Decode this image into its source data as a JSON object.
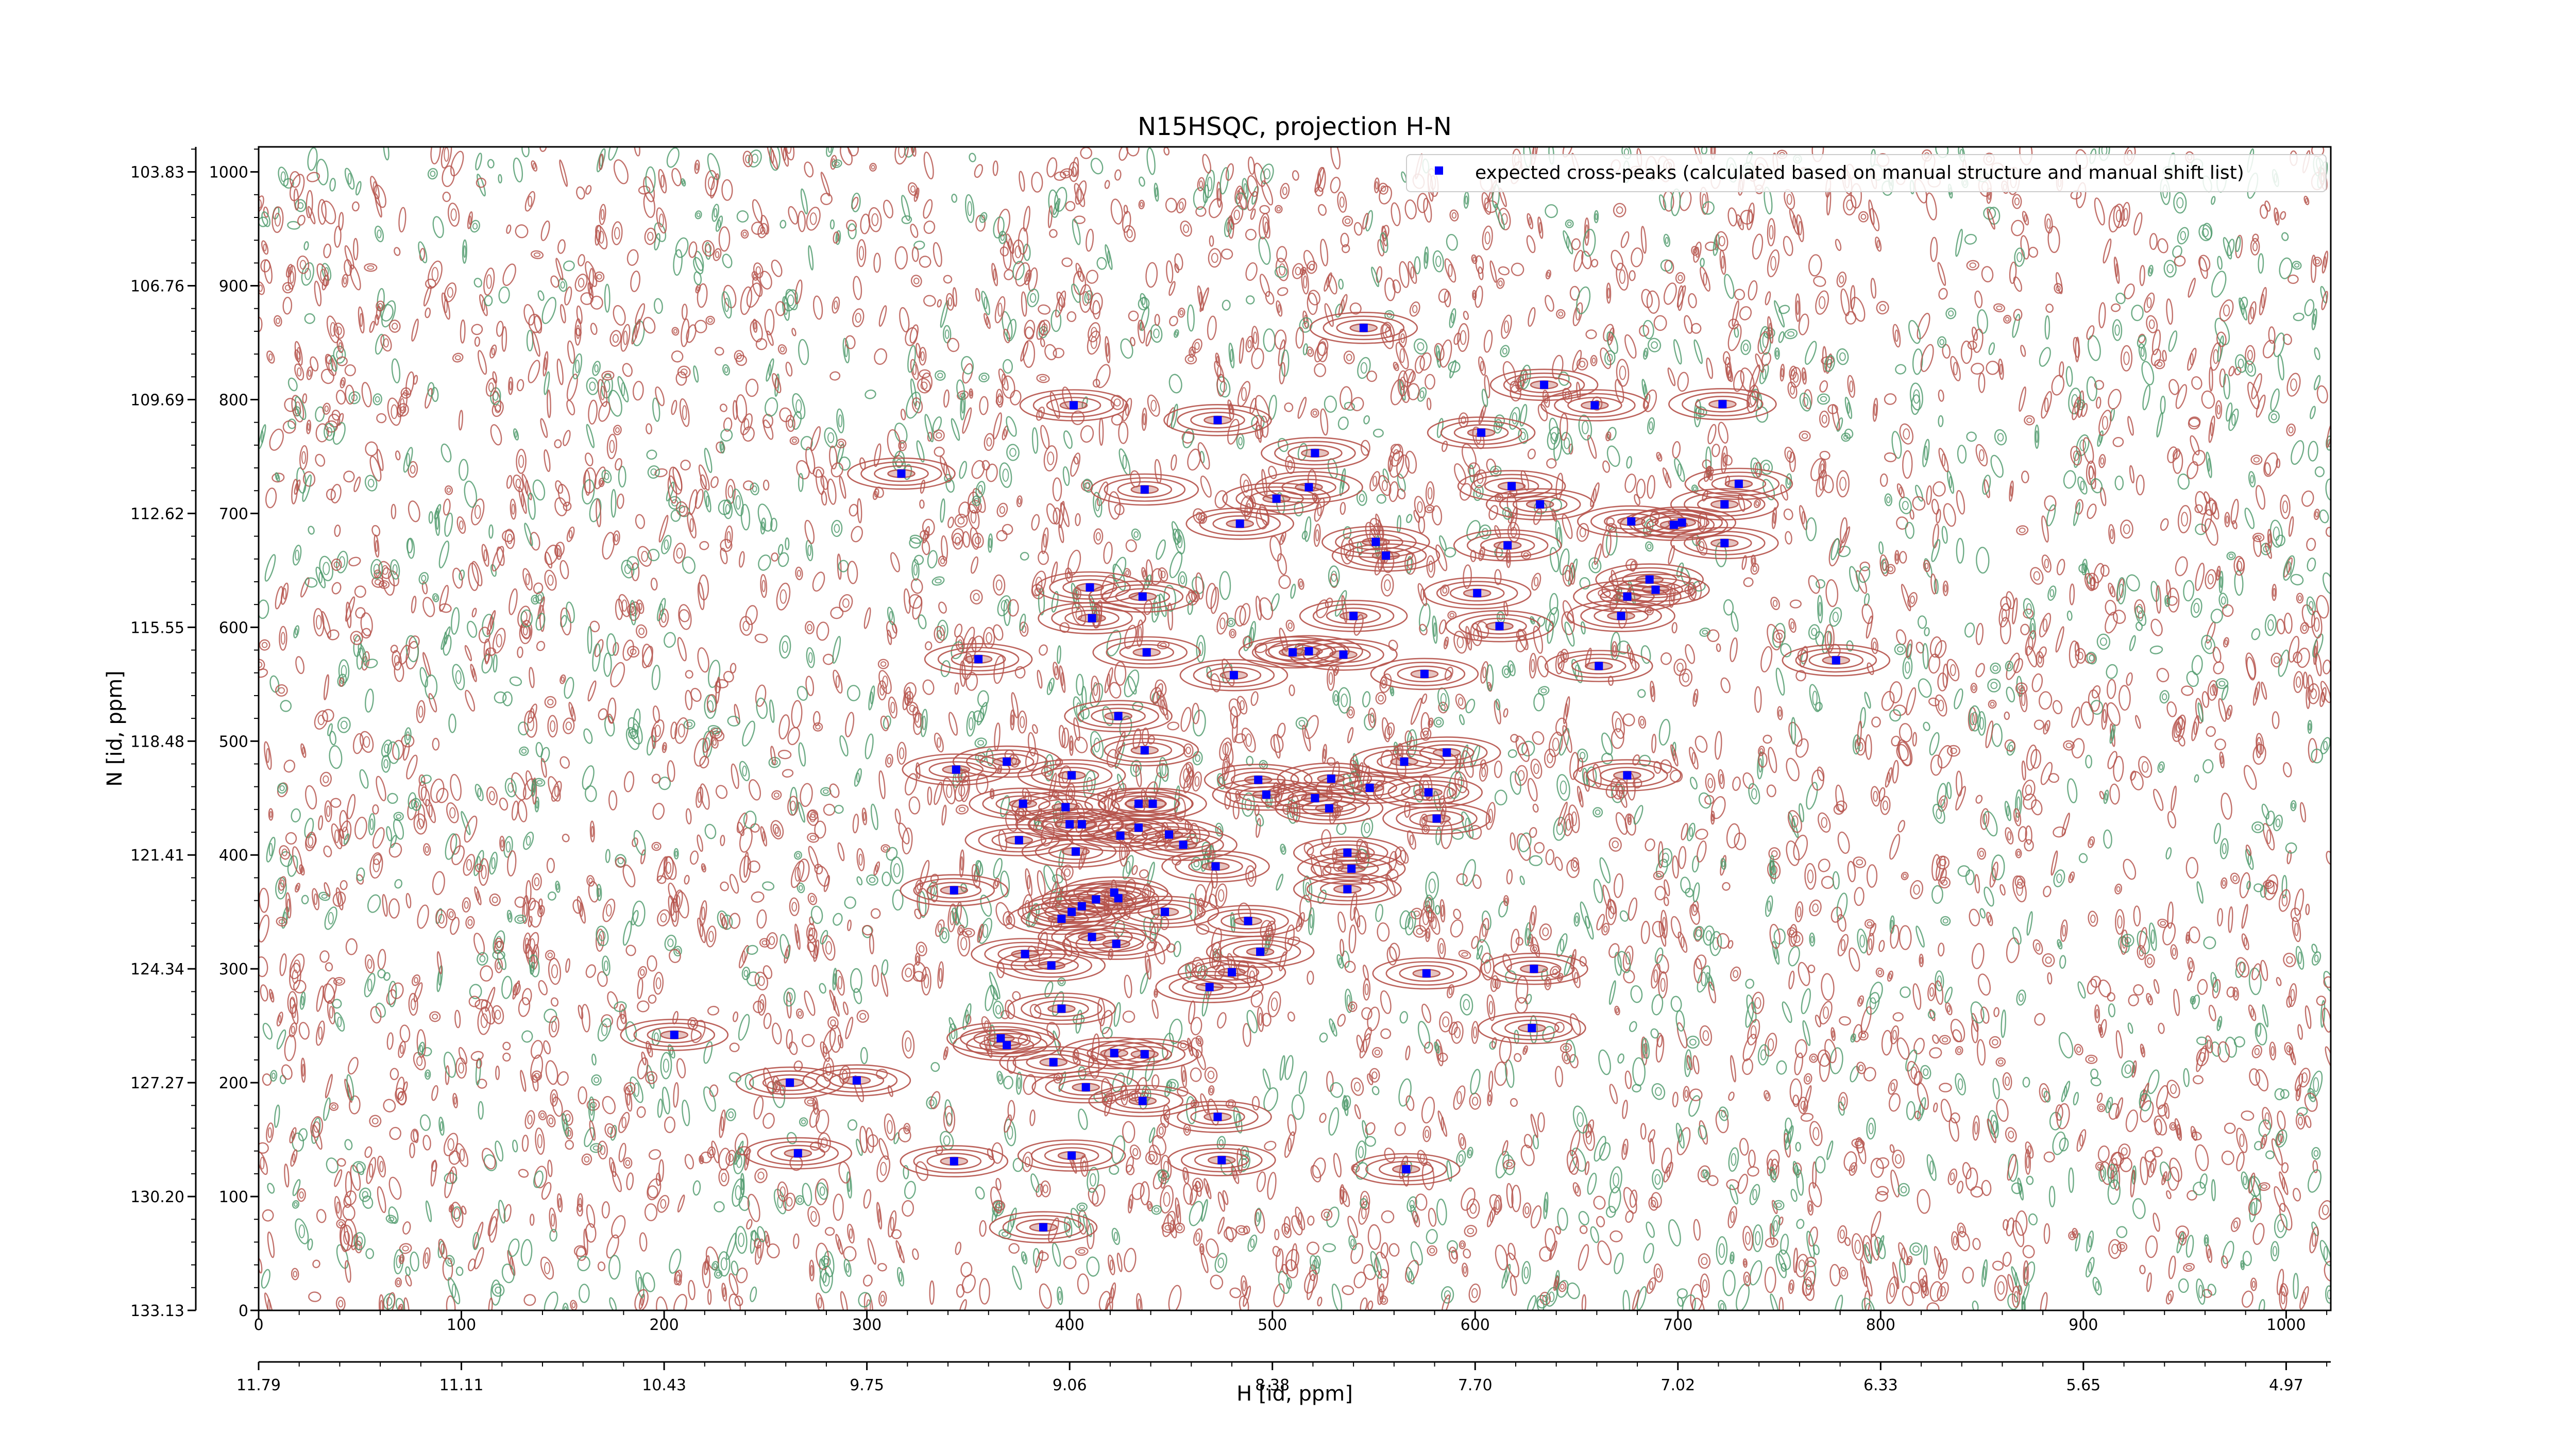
{
  "chart_data": {
    "type": "scatter",
    "title": "N15HSQC, projection H-N",
    "xlabel": "H [id, ppm]",
    "ylabel": "N [id, ppm]",
    "x_index_range": [
      0,
      1022
    ],
    "y_index_range": [
      0,
      1022
    ],
    "x_index_ticks": [
      "0",
      "100",
      "200",
      "300",
      "400",
      "500",
      "600",
      "700",
      "800",
      "900",
      "1000"
    ],
    "y_index_ticks": [
      "0",
      "100",
      "200",
      "300",
      "400",
      "500",
      "600",
      "700",
      "800",
      "900",
      "1000"
    ],
    "h_ppm_ticks": [
      "11.79",
      "11.11",
      "10.43",
      "9.75",
      "9.06",
      "8.38",
      "7.70",
      "7.02",
      "6.33",
      "5.65",
      "4.97"
    ],
    "n_ppm_ticks": [
      "133.13",
      "130.20",
      "127.27",
      "124.34",
      "121.41",
      "118.48",
      "115.55",
      "112.62",
      "109.69",
      "106.76",
      "103.83"
    ],
    "grid": false,
    "legend": {
      "placement": "top-right",
      "entries": [
        {
          "label": "expected cross-peaks (calculated based on manual structure and manual shift list)",
          "color": "#0000ff"
        }
      ]
    },
    "colors": {
      "positive_contours": "#b5524a",
      "negative_contours": "#4e9a6b",
      "peak_marker": "#0000ff"
    },
    "series": [
      {
        "name": "expected cross-peaks (calculated based on manual structure and manual shift list)",
        "points": [
          [
            545,
            863
          ],
          [
            402,
            795
          ],
          [
            473,
            782
          ],
          [
            634,
            813
          ],
          [
            659,
            795
          ],
          [
            722,
            796
          ],
          [
            603,
            771
          ],
          [
            521,
            753
          ],
          [
            317,
            735
          ],
          [
            437,
            721
          ],
          [
            518,
            723
          ],
          [
            502,
            713
          ],
          [
            618,
            724
          ],
          [
            632,
            708
          ],
          [
            723,
            708
          ],
          [
            730,
            726
          ],
          [
            677,
            693
          ],
          [
            702,
            692
          ],
          [
            698,
            690
          ],
          [
            723,
            674
          ],
          [
            484,
            691
          ],
          [
            616,
            672
          ],
          [
            551,
            675
          ],
          [
            556,
            663
          ],
          [
            410,
            635
          ],
          [
            436,
            627
          ],
          [
            411,
            608
          ],
          [
            601,
            630
          ],
          [
            686,
            642
          ],
          [
            689,
            633
          ],
          [
            675,
            627
          ],
          [
            672,
            610
          ],
          [
            540,
            610
          ],
          [
            612,
            601
          ],
          [
            438,
            578
          ],
          [
            355,
            572
          ],
          [
            510,
            578
          ],
          [
            518,
            579
          ],
          [
            535,
            576
          ],
          [
            481,
            558
          ],
          [
            575,
            559
          ],
          [
            661,
            566
          ],
          [
            778,
            571
          ],
          [
            424,
            522
          ],
          [
            437,
            492
          ],
          [
            586,
            490
          ],
          [
            565,
            482
          ],
          [
            344,
            475
          ],
          [
            369,
            482
          ],
          [
            401,
            470
          ],
          [
            493,
            466
          ],
          [
            529,
            467
          ],
          [
            577,
            455
          ],
          [
            675,
            470
          ],
          [
            377,
            445
          ],
          [
            398,
            442
          ],
          [
            434,
            445
          ],
          [
            441,
            445
          ],
          [
            497,
            453
          ],
          [
            521,
            450
          ],
          [
            548,
            459
          ],
          [
            528,
            441
          ],
          [
            581,
            432
          ],
          [
            406,
            427
          ],
          [
            425,
            417
          ],
          [
            434,
            424
          ],
          [
            400,
            427
          ],
          [
            375,
            413
          ],
          [
            403,
            403
          ],
          [
            449,
            418
          ],
          [
            456,
            409
          ],
          [
            472,
            390
          ],
          [
            537,
            402
          ],
          [
            539,
            388
          ],
          [
            537,
            370
          ],
          [
            343,
            369
          ],
          [
            422,
            367
          ],
          [
            424,
            362
          ],
          [
            413,
            361
          ],
          [
            406,
            355
          ],
          [
            401,
            350
          ],
          [
            396,
            344
          ],
          [
            447,
            350
          ],
          [
            488,
            342
          ],
          [
            411,
            328
          ],
          [
            423,
            322
          ],
          [
            378,
            313
          ],
          [
            391,
            303
          ],
          [
            494,
            315
          ],
          [
            480,
            297
          ],
          [
            576,
            296
          ],
          [
            629,
            300
          ],
          [
            469,
            284
          ],
          [
            396,
            265
          ],
          [
            366,
            239
          ],
          [
            369,
            233
          ],
          [
            205,
            242
          ],
          [
            628,
            248
          ],
          [
            422,
            226
          ],
          [
            437,
            225
          ],
          [
            392,
            218
          ],
          [
            408,
            196
          ],
          [
            262,
            200
          ],
          [
            295,
            202
          ],
          [
            436,
            184
          ],
          [
            473,
            170
          ],
          [
            266,
            138
          ],
          [
            343,
            131
          ],
          [
            401,
            136
          ],
          [
            475,
            132
          ],
          [
            566,
            124
          ],
          [
            387,
            73
          ]
        ]
      }
    ]
  }
}
